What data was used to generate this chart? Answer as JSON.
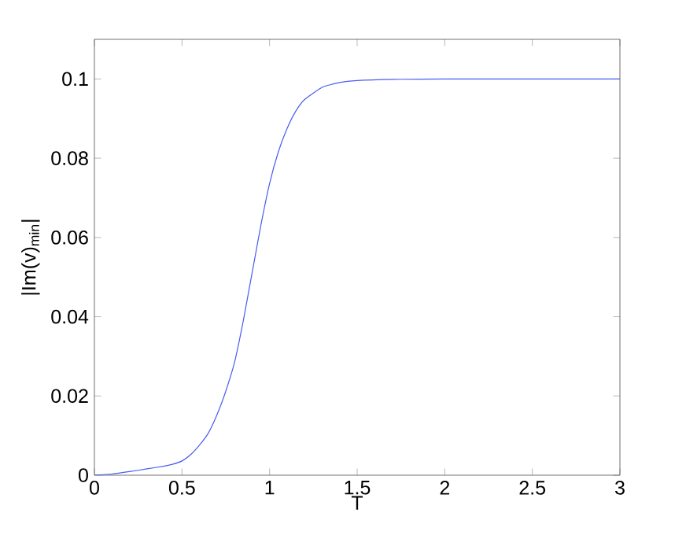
{
  "chart_data": {
    "type": "line",
    "xlabel": "T",
    "ylabel": "|Im(v)$_{min}$|",
    "x": [
      0,
      0.1,
      0.2,
      0.3,
      0.4,
      0.45,
      0.5,
      0.55,
      0.6,
      0.65,
      0.7,
      0.75,
      0.8,
      0.85,
      0.9,
      0.95,
      1.0,
      1.05,
      1.1,
      1.15,
      1.2,
      1.3,
      1.4,
      1.5,
      1.7,
      2.0,
      2.5,
      3.0
    ],
    "series": [
      {
        "color": "#4a5cf0",
        "values": [
          0,
          0.0003,
          0.0009,
          0.0016,
          0.0023,
          0.0028,
          0.0036,
          0.0052,
          0.0076,
          0.0106,
          0.0153,
          0.0212,
          0.0285,
          0.039,
          0.051,
          0.063,
          0.0736,
          0.0816,
          0.0875,
          0.0919,
          0.0948,
          0.0979,
          0.0991,
          0.0996,
          0.0999,
          0.1,
          0.1,
          0.1
        ]
      }
    ],
    "xlim": [
      0,
      3
    ],
    "ylim": [
      0,
      0.11
    ],
    "xticks": [
      0,
      0.5,
      1,
      1.5,
      2,
      2.5,
      3
    ],
    "yticks": [
      0,
      0.02,
      0.04,
      0.06,
      0.08,
      0.1
    ],
    "marker": "none",
    "line_style": "solid"
  }
}
